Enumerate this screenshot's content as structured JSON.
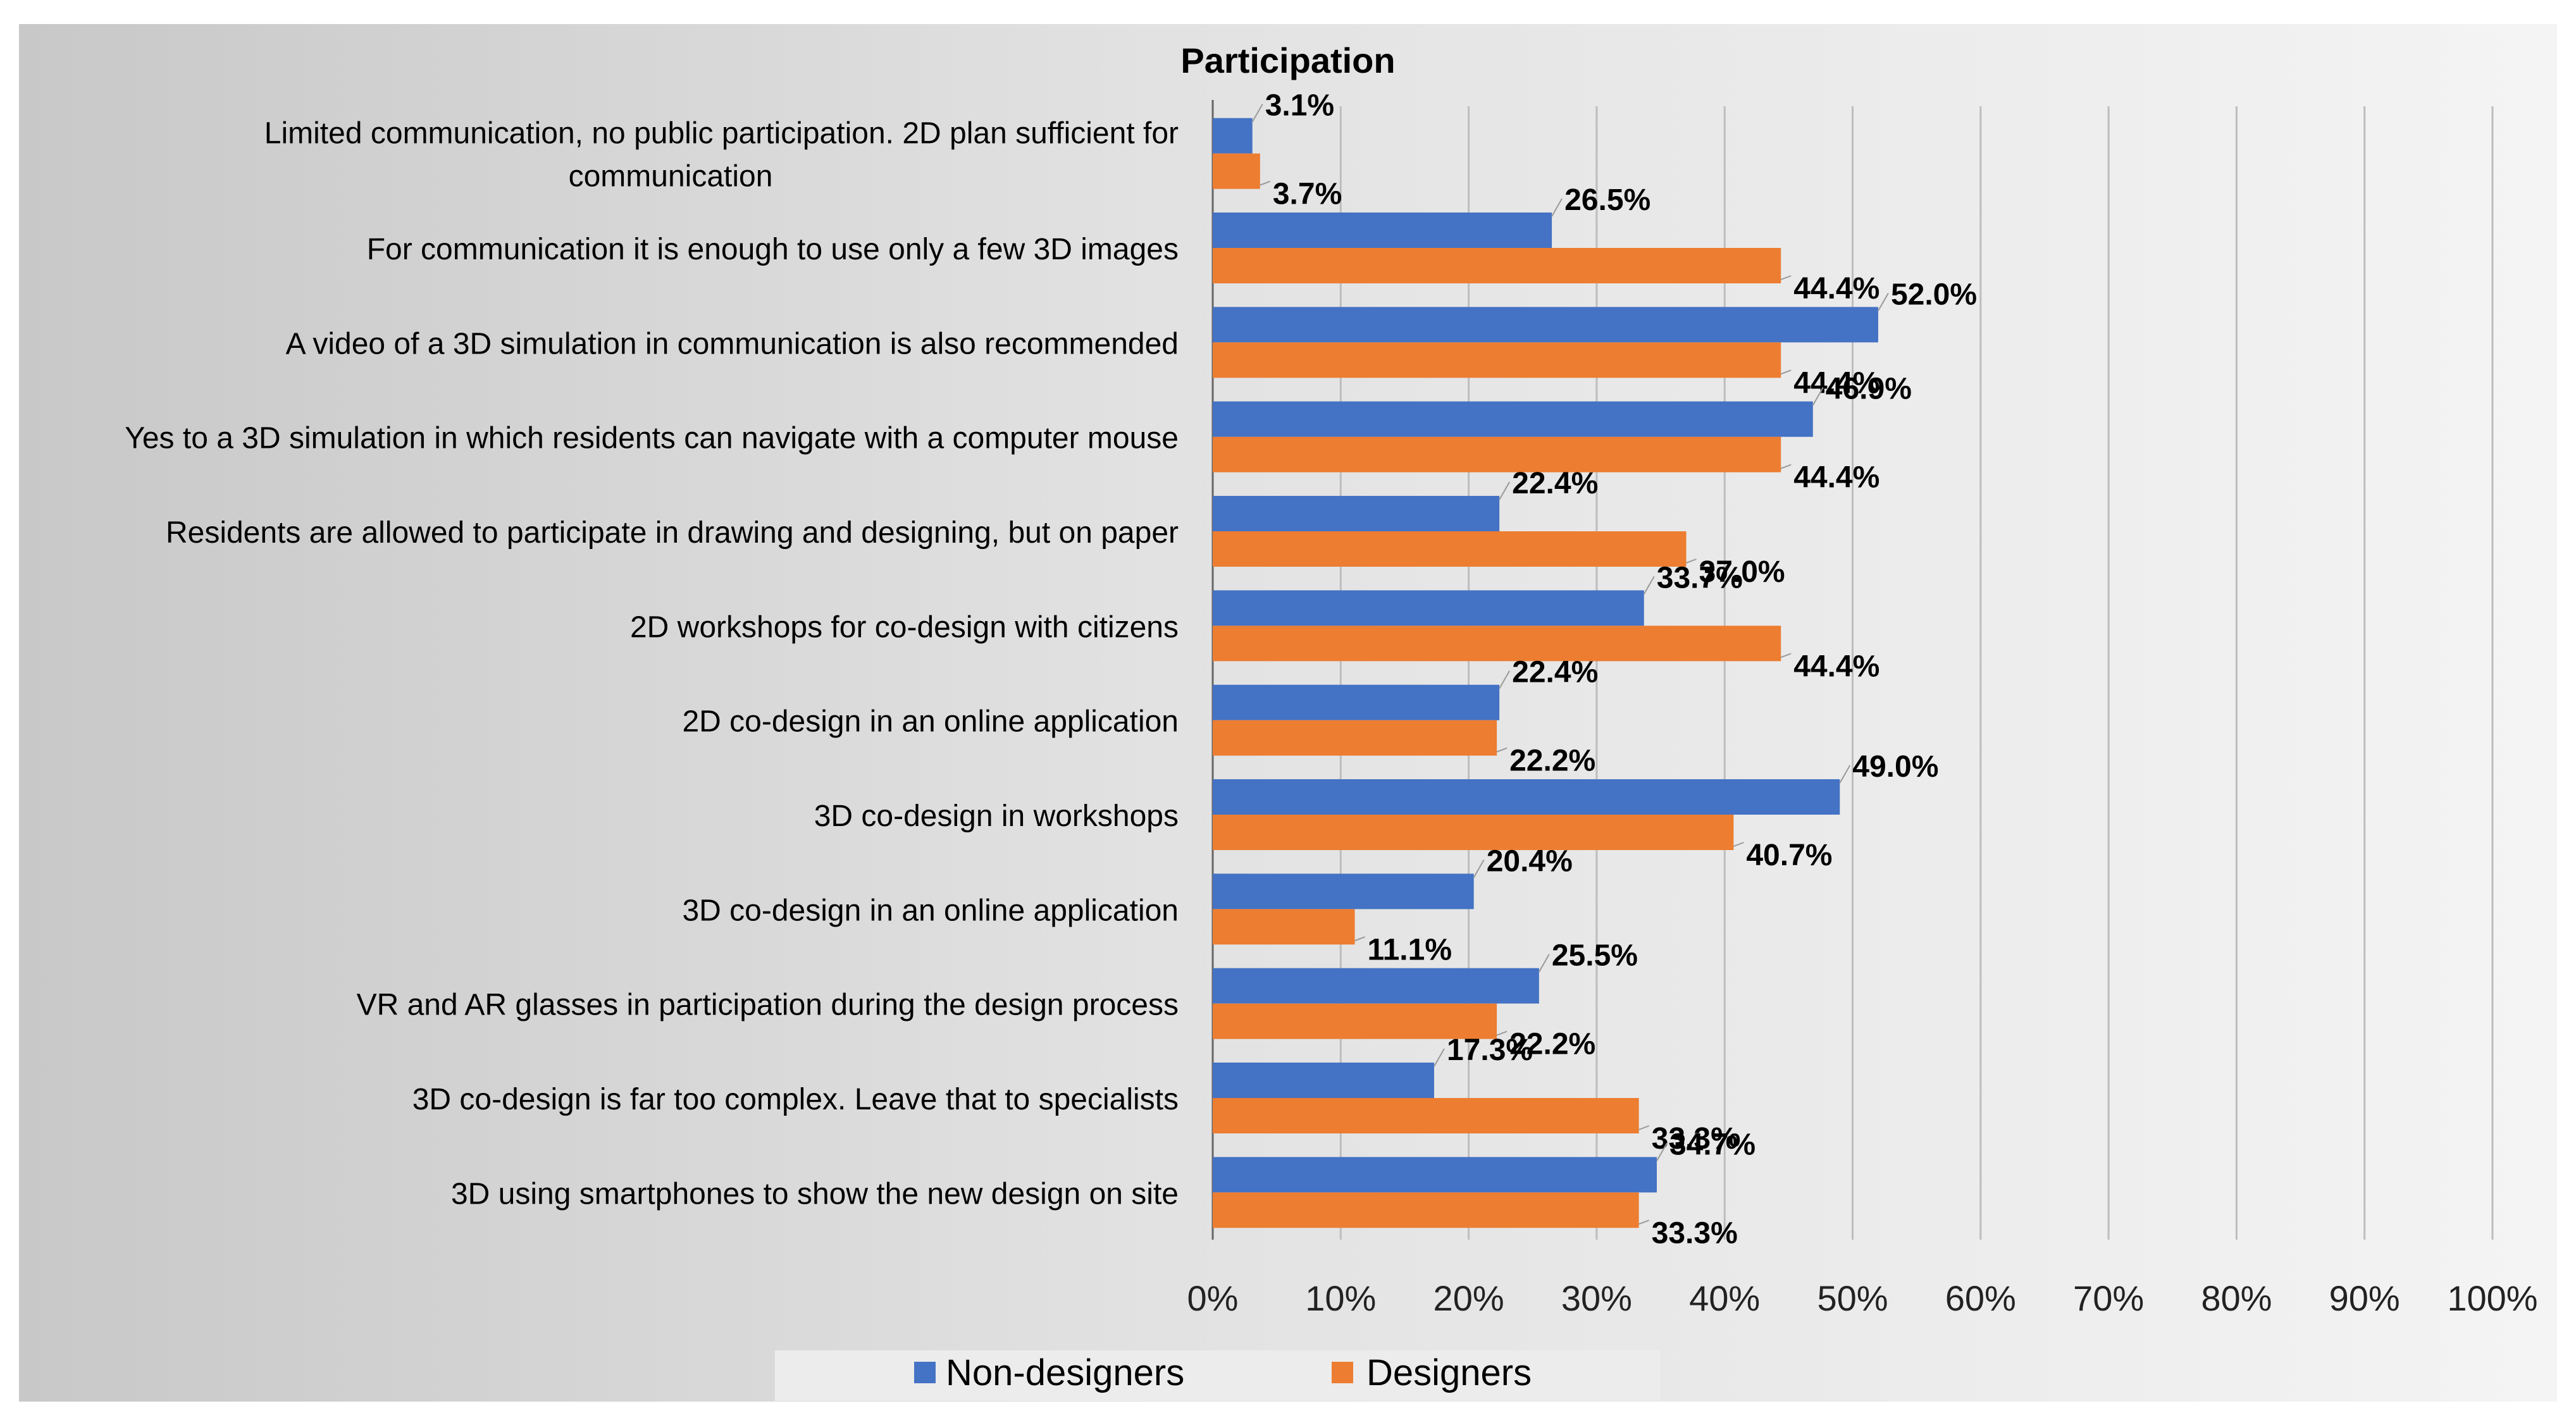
{
  "chart_data": {
    "type": "bar",
    "orientation": "horizontal",
    "title": "Participation",
    "xlabel": "",
    "ylabel": "",
    "xlim": [
      0,
      100
    ],
    "x_ticks": [
      "0%",
      "10%",
      "20%",
      "30%",
      "40%",
      "50%",
      "60%",
      "70%",
      "80%",
      "90%",
      "100%"
    ],
    "grid": true,
    "legend_position": "bottom",
    "categories": [
      [
        "Limited communication, no public participation. 2D plan sufficient for",
        "communication"
      ],
      [
        "For communication it is enough to use only a few 3D images"
      ],
      [
        "A video of a 3D simulation in communication is also recommended"
      ],
      [
        "Yes to a 3D simulation in which residents can navigate with a computer mouse"
      ],
      [
        "Residents are allowed to participate in drawing and designing, but on paper"
      ],
      [
        "2D workshops for co-design with citizens"
      ],
      [
        "2D co-design in an online application"
      ],
      [
        "3D co-design in workshops"
      ],
      [
        "3D co-design in an online application"
      ],
      [
        "VR and AR glasses in participation during the design process"
      ],
      [
        "3D co-design is far too complex. Leave that to specialists"
      ],
      [
        "3D using smartphones to show the new design on site"
      ]
    ],
    "series": [
      {
        "name": "Non-designers",
        "color": "#4472C4",
        "values": [
          3.1,
          26.5,
          52.0,
          46.9,
          22.4,
          33.7,
          22.4,
          49.0,
          20.4,
          25.5,
          17.3,
          34.7
        ],
        "labels": [
          "3.1%",
          "26.5%",
          "52.0%",
          "46.9%",
          "22.4%",
          "33.7%",
          "22.4%",
          "49.0%",
          "20.4%",
          "25.5%",
          "17.3%",
          "34.7%"
        ]
      },
      {
        "name": "Designers",
        "color": "#ED7D31",
        "values": [
          3.7,
          44.4,
          44.4,
          44.4,
          37.0,
          44.4,
          22.2,
          40.7,
          11.1,
          22.2,
          33.3,
          33.3
        ],
        "labels": [
          "3.7%",
          "44.4%",
          "44.4%",
          "44.4%",
          "37.0%",
          "44.4%",
          "22.2%",
          "40.7%",
          "11.1%",
          "22.2%",
          "33.3%",
          "33.3%"
        ]
      }
    ]
  }
}
